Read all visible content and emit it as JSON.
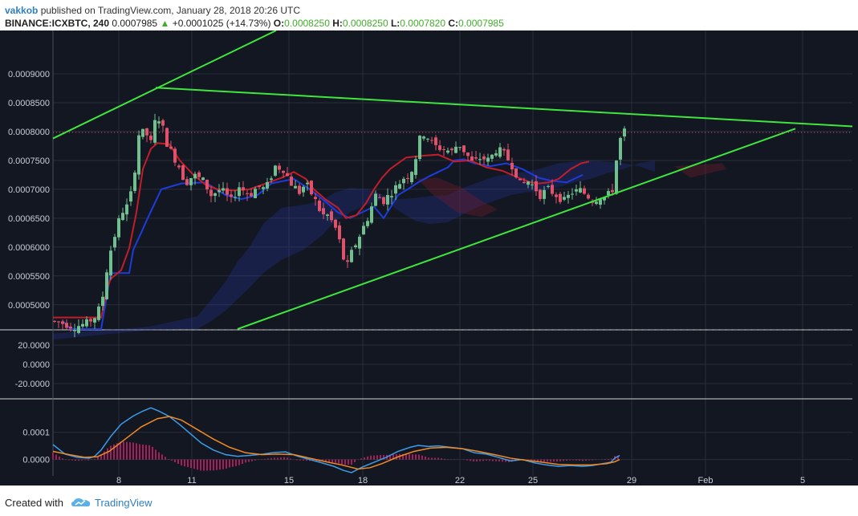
{
  "header": {
    "author": "vakkob",
    "published_text": "published on TradingView.com, January 28, 2018 20:26 UTC",
    "symbol": "BINANCE:ICXBTC, 240",
    "last_price": "0.0007985",
    "change": "+0.0001025 (+14.73%)",
    "open_label": "O:",
    "open": "0.0008250",
    "high_label": "H:",
    "high": "0.0008250",
    "low_label": "L:",
    "low": "0.0007820",
    "close_label": "C:",
    "close": "0.0007985"
  },
  "footer": {
    "created_with": "Created with",
    "brand": "TradingView"
  },
  "colors": {
    "background": "#131722",
    "up": "#6fbf8f",
    "down": "#e0526a",
    "trendline": "#3ee63e",
    "tenkan": "#1e3cdc",
    "kijun": "#c21e2a",
    "macd": "#3d9ce8",
    "signal": "#f08a24",
    "hist": "#d3256c"
  },
  "chart_data": {
    "type": "candlestick",
    "x_ticks": [
      "8",
      "11",
      "15",
      "18",
      "22",
      "25",
      "29",
      "Feb",
      "5"
    ],
    "main_panel": {
      "y_ticks": [
        "0.0009000",
        "0.0008500",
        "0.0008000",
        "0.0007500",
        "0.0007000",
        "0.0006500",
        "0.0006000",
        "0.0005500",
        "0.0005000"
      ],
      "ylim": [
        0.000458,
        0.000975
      ],
      "last_price_line": 0.0007985,
      "trendlines": [
        {
          "x": [
            0,
            278
          ],
          "y": [
            0.000788,
            0.000975
          ]
        },
        {
          "x": [
            128,
            1061
          ],
          "y": [
            0.000876,
            0.000809
          ]
        },
        {
          "x": [
            230,
            925
          ],
          "y": [
            0.000458,
            0.000805
          ]
        }
      ],
      "tenkan": [
        [
          0.00049,
          0.000472
        ],
        [
          12,
          0.000472
        ],
        [
          22,
          0.000458
        ],
        [
          60,
          0.000458
        ],
        [
          72,
          0.000555
        ],
        [
          95,
          0.000555
        ],
        [
          100,
          0.000595
        ],
        [
          110,
          0.000625
        ],
        [
          118,
          0.00065
        ],
        [
          135,
          0.0007
        ],
        [
          160,
          0.00071
        ],
        [
          190,
          0.000712
        ],
        [
          215,
          0.00069
        ],
        [
          235,
          0.000683
        ],
        [
          255,
          0.00069
        ],
        [
          272,
          0.00071
        ],
        [
          300,
          0.000718
        ],
        [
          322,
          0.000698
        ],
        [
          340,
          0.000678
        ],
        [
          355,
          0.00066
        ],
        [
          370,
          0.00065
        ],
        [
          385,
          0.00066
        ],
        [
          400,
          0.00067
        ],
        [
          412,
          0.00065
        ],
        [
          422,
          0.000672
        ],
        [
          430,
          0.00069
        ],
        [
          442,
          0.0007
        ],
        [
          455,
          0.000712
        ],
        [
          468,
          0.000722
        ],
        [
          480,
          0.00073
        ],
        [
          492,
          0.000738
        ],
        [
          500,
          0.00075
        ],
        [
          512,
          0.000752
        ],
        [
          525,
          0.000745
        ],
        [
          545,
          0.00074
        ],
        [
          565,
          0.000745
        ],
        [
          585,
          0.000735
        ],
        [
          605,
          0.00072
        ],
        [
          620,
          0.000715
        ],
        [
          640,
          0.000712
        ],
        [
          660,
          0.000725
        ]
      ],
      "kijun": [
        [
          0,
          0.000478
        ],
        [
          60,
          0.000478
        ],
        [
          68,
          0.00053
        ],
        [
          72,
          0.000545
        ],
        [
          85,
          0.00056
        ],
        [
          95,
          0.000598
        ],
        [
          104,
          0.00066
        ],
        [
          112,
          0.000735
        ],
        [
          122,
          0.00077
        ],
        [
          130,
          0.00078
        ],
        [
          145,
          0.000778
        ],
        [
          158,
          0.00075
        ],
        [
          175,
          0.000725
        ],
        [
          190,
          0.000708
        ],
        [
          205,
          0.0007
        ],
        [
          225,
          0.000698
        ],
        [
          245,
          0.0007
        ],
        [
          265,
          0.00071
        ],
        [
          285,
          0.00072
        ],
        [
          300,
          0.00073
        ],
        [
          315,
          0.000718
        ],
        [
          325,
          0.0007
        ],
        [
          340,
          0.000682
        ],
        [
          355,
          0.000668
        ],
        [
          365,
          0.00065
        ],
        [
          378,
          0.000655
        ],
        [
          390,
          0.000676
        ],
        [
          400,
          0.0007
        ],
        [
          410,
          0.00072
        ],
        [
          420,
          0.000735
        ],
        [
          430,
          0.000745
        ],
        [
          440,
          0.000755
        ],
        [
          460,
          0.000758
        ],
        [
          480,
          0.00076
        ],
        [
          500,
          0.000748
        ],
        [
          520,
          0.00075
        ],
        [
          540,
          0.000738
        ],
        [
          560,
          0.000732
        ],
        [
          580,
          0.00072
        ],
        [
          595,
          0.000712
        ],
        [
          605,
          0.00071
        ],
        [
          618,
          0.000712
        ],
        [
          630,
          0.000718
        ],
        [
          645,
          0.000735
        ],
        [
          658,
          0.000745
        ],
        [
          668,
          0.000748
        ]
      ],
      "cloud": {
        "a": [
          [
            0,
            0.00045
          ],
          [
            120,
            0.000462
          ],
          [
            180,
            0.00048
          ],
          [
            195,
            0.000505
          ],
          [
            215,
            0.00054
          ],
          [
            230,
            0.000575
          ],
          [
            245,
            0.0006
          ],
          [
            262,
            0.00064
          ],
          [
            285,
            0.000668
          ],
          [
            312,
            0.000673
          ],
          [
            335,
            0.00068
          ],
          [
            352,
            0.000695
          ],
          [
            370,
            0.000702
          ],
          [
            392,
            0.0007
          ],
          [
            412,
            0.00069
          ],
          [
            430,
            0.000683
          ],
          [
            452,
            0.000685
          ],
          [
            470,
            0.000688
          ],
          [
            492,
            0.00069
          ],
          [
            510,
            0.000702
          ],
          [
            530,
            0.000712
          ],
          [
            550,
            0.000722
          ],
          [
            570,
            0.000727
          ],
          [
            590,
            0.00073
          ],
          [
            610,
            0.000737
          ],
          [
            630,
            0.000745
          ],
          [
            650,
            0.000748
          ],
          [
            670,
            0.00075
          ],
          [
            690,
            0.000748
          ],
          [
            710,
            0.000745
          ],
          [
            730,
            0.00074
          ],
          [
            750,
            0.00073
          ]
        ],
        "b": [
          [
            0,
            0.00044
          ],
          [
            120,
            0.000456
          ],
          [
            180,
            0.000458
          ],
          [
            195,
            0.00047
          ],
          [
            215,
            0.00049
          ],
          [
            230,
            0.00051
          ],
          [
            245,
            0.00053
          ],
          [
            262,
            0.000555
          ],
          [
            285,
            0.000578
          ],
          [
            312,
            0.000595
          ],
          [
            335,
            0.00062
          ],
          [
            352,
            0.000645
          ],
          [
            370,
            0.00066
          ],
          [
            392,
            0.000674
          ],
          [
            412,
            0.000683
          ],
          [
            430,
            0.000663
          ],
          [
            452,
            0.000645
          ],
          [
            470,
            0.00064
          ],
          [
            492,
            0.000643
          ],
          [
            510,
            0.000656
          ],
          [
            530,
            0.00067
          ],
          [
            550,
            0.00068
          ],
          [
            570,
            0.00069
          ],
          [
            590,
            0.000695
          ],
          [
            610,
            0.000697
          ],
          [
            630,
            0.000704
          ],
          [
            650,
            0.000712
          ],
          [
            670,
            0.000718
          ],
          [
            690,
            0.000728
          ],
          [
            710,
            0.000735
          ],
          [
            730,
            0.000745
          ],
          [
            750,
            0.00075
          ]
        ]
      }
    },
    "rsi_panel": {
      "y_ticks": [
        "20.0000",
        "0.0000",
        "-20.0000"
      ],
      "ylim": [
        -35,
        35
      ]
    },
    "macd_panel": {
      "y_ticks": [
        "0.0001",
        "0.0000"
      ],
      "ylim": [
        -6e-05,
        0.00022
      ],
      "macd": [
        [
          0,
          5.5e-05
        ],
        [
          15,
          2e-05
        ],
        [
          30,
          8e-06
        ],
        [
          45,
          5e-06
        ],
        [
          52,
          1.2e-05
        ],
        [
          60,
          3.5e-05
        ],
        [
          72,
          8.5e-05
        ],
        [
          85,
          0.00013
        ],
        [
          100,
          0.00016
        ],
        [
          112,
          0.000178
        ],
        [
          122,
          0.00019
        ],
        [
          132,
          0.000178
        ],
        [
          145,
          0.000158
        ],
        [
          158,
          0.000128
        ],
        [
          170,
          9.8e-05
        ],
        [
          185,
          6e-05
        ],
        [
          200,
          3.5e-05
        ],
        [
          215,
          1.8e-05
        ],
        [
          230,
          1.2e-05
        ],
        [
          245,
          1.5e-05
        ],
        [
          262,
          2e-05
        ],
        [
          275,
          2.6e-05
        ],
        [
          290,
          2.8e-05
        ],
        [
          305,
          1.2e-05
        ],
        [
          320,
          0.0
        ],
        [
          335,
          -1.2e-05
        ],
        [
          350,
          -2.5e-05
        ],
        [
          362,
          -4e-05
        ],
        [
          372,
          -4.8e-05
        ],
        [
          385,
          -2.8e-05
        ],
        [
          400,
          -1e-05
        ],
        [
          415,
          8e-06
        ],
        [
          430,
          3e-05
        ],
        [
          445,
          4.5e-05
        ],
        [
          455,
          5.2e-05
        ],
        [
          468,
          4.8e-05
        ],
        [
          480,
          5e-05
        ],
        [
          495,
          4.5e-05
        ],
        [
          510,
          4e-05
        ],
        [
          525,
          2.5e-05
        ],
        [
          540,
          2e-05
        ],
        [
          555,
          8e-06
        ],
        [
          570,
          -5e-06
        ],
        [
          585,
          0.0
        ],
        [
          600,
          -1.2e-05
        ],
        [
          615,
          -2e-05
        ],
        [
          630,
          -2.5e-05
        ],
        [
          645,
          -2.2e-05
        ],
        [
          660,
          -2.5e-05
        ],
        [
          672,
          -2.2e-05
        ],
        [
          685,
          -1.5e-05
        ],
        [
          695,
          -1e-05
        ],
        [
          700,
          5e-06
        ],
        [
          706,
          1.5e-05
        ]
      ],
      "signal": [
        [
          0,
          3e-05
        ],
        [
          20,
          1.8e-05
        ],
        [
          40,
          8e-06
        ],
        [
          55,
          1e-05
        ],
        [
          70,
          3e-05
        ],
        [
          90,
          7.5e-05
        ],
        [
          110,
          0.00012
        ],
        [
          130,
          0.00015
        ],
        [
          145,
          0.000158
        ],
        [
          160,
          0.000145
        ],
        [
          180,
          0.00011
        ],
        [
          200,
          7.5e-05
        ],
        [
          220,
          4.5e-05
        ],
        [
          240,
          2.5e-05
        ],
        [
          260,
          1.8e-05
        ],
        [
          280,
          2e-05
        ],
        [
          300,
          1.8e-05
        ],
        [
          320,
          5e-06
        ],
        [
          340,
          -8e-06
        ],
        [
          360,
          -2e-05
        ],
        [
          380,
          -3.5e-05
        ],
        [
          395,
          -3e-05
        ],
        [
          410,
          -1.5e-05
        ],
        [
          430,
          1e-05
        ],
        [
          450,
          3e-05
        ],
        [
          470,
          4.2e-05
        ],
        [
          490,
          4.5e-05
        ],
        [
          510,
          4e-05
        ],
        [
          530,
          3e-05
        ],
        [
          550,
          1.8e-05
        ],
        [
          570,
          5e-06
        ],
        [
          590,
          -3e-06
        ],
        [
          610,
          -1e-05
        ],
        [
          630,
          -1.8e-05
        ],
        [
          650,
          -2e-05
        ],
        [
          670,
          -2e-05
        ],
        [
          690,
          -1.5e-05
        ],
        [
          700,
          -8e-06
        ],
        [
          706,
          0.0
        ]
      ]
    }
  }
}
